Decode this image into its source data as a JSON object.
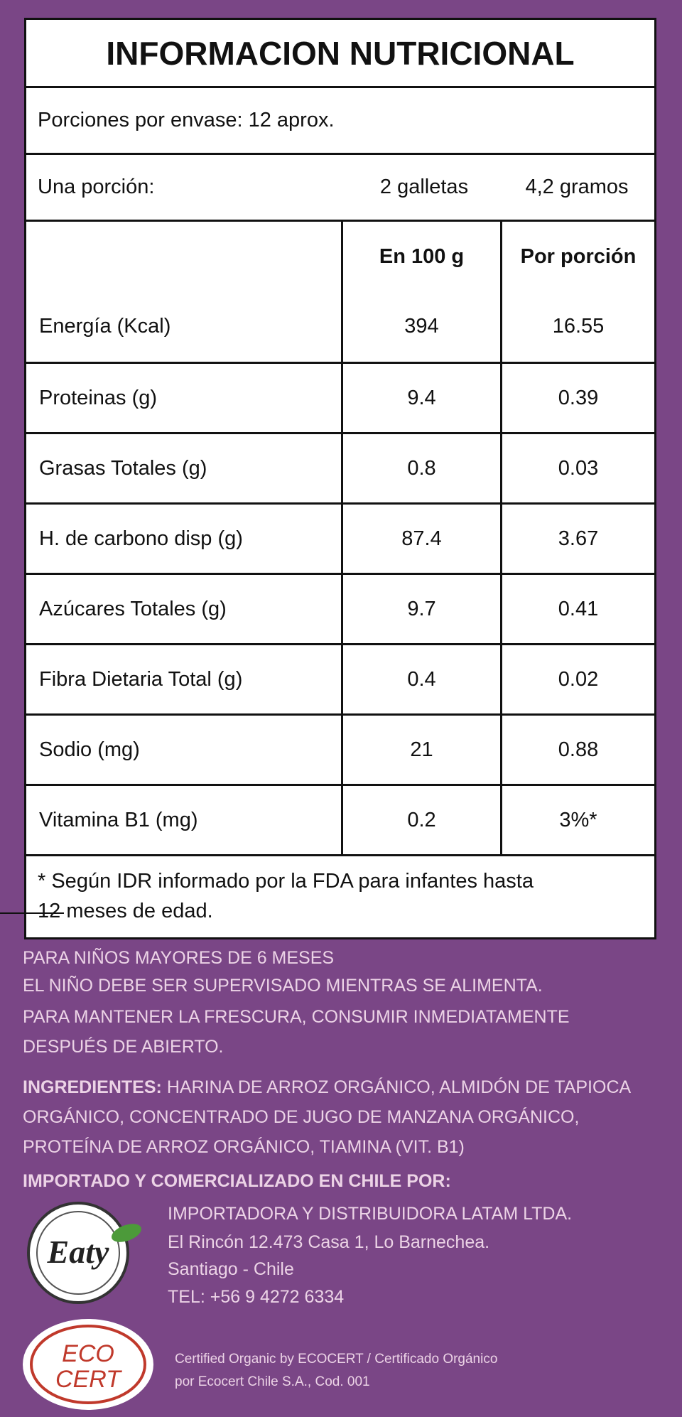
{
  "header": {
    "title": "INFORMACION NUTRICIONAL"
  },
  "servings": "Porciones por envase: 12 aprox.",
  "portion": {
    "label": "Una porción:",
    "count": "2 galletas",
    "weight": "4,2 gramos"
  },
  "table": {
    "columns": [
      "En 100 g",
      "Por porción"
    ],
    "rows": [
      [
        "Energía (Kcal)",
        "394",
        "16.55"
      ],
      [
        "Proteinas (g)",
        "9.4",
        "0.39"
      ],
      [
        "Grasas Totales (g)",
        "0.8",
        "0.03"
      ],
      [
        "H. de carbono disp (g)",
        "87.4",
        "3.67"
      ],
      [
        "Azúcares Totales (g)",
        "9.7",
        "0.41"
      ],
      [
        "Fibra Dietaria Total (g)",
        "0.4",
        "0.02"
      ],
      [
        "Sodio (mg)",
        "21",
        "0.88"
      ],
      [
        "Vitamina B1 (mg)",
        "0.2",
        "3%*"
      ]
    ]
  },
  "footnote": [
    "* Según IDR informado por la FDA para infantes hasta",
    "12 meses de edad."
  ],
  "warnings": [
    "PARA NIÑOS MAYORES DE 6 MESES",
    "EL NIÑO DEBE SER SUPERVISADO MIENTRAS SE ALIMENTA.",
    "PARA MANTENER LA FRESCURA, CONSUMIR INMEDIATAMENTE",
    "DESPUÉS DE ABIERTO."
  ],
  "ingredients": {
    "label": "INGREDIENTES:",
    "text": "HARINA DE ARROZ ORGÁNICO, ALMIDÓN DE TAPIOCA ORGÁNICO, CONCENTRADO DE JUGO DE MANZANA ORGÁNICO, PROTEÍNA DE ARROZ ORGÁNICO, TIAMINA (VIT. B1)"
  },
  "importer": {
    "heading": "IMPORTADO Y COMERCIALIZADO EN CHILE POR:",
    "lines": [
      "IMPORTADORA Y DISTRIBUIDORA LATAM LTDA.",
      "El Rincón 12.473 Casa 1, Lo Barnechea.",
      "Santiago - Chile",
      "TEL: +56 9 4272 6334"
    ]
  },
  "certification": [
    "Certified Organic by ECOCERT / Certificado Orgánico",
    "por Ecocert Chile S.A., Cod. 001"
  ],
  "logos": {
    "eaty": "Eaty",
    "ecocert": [
      "ECO",
      "CERT"
    ]
  }
}
